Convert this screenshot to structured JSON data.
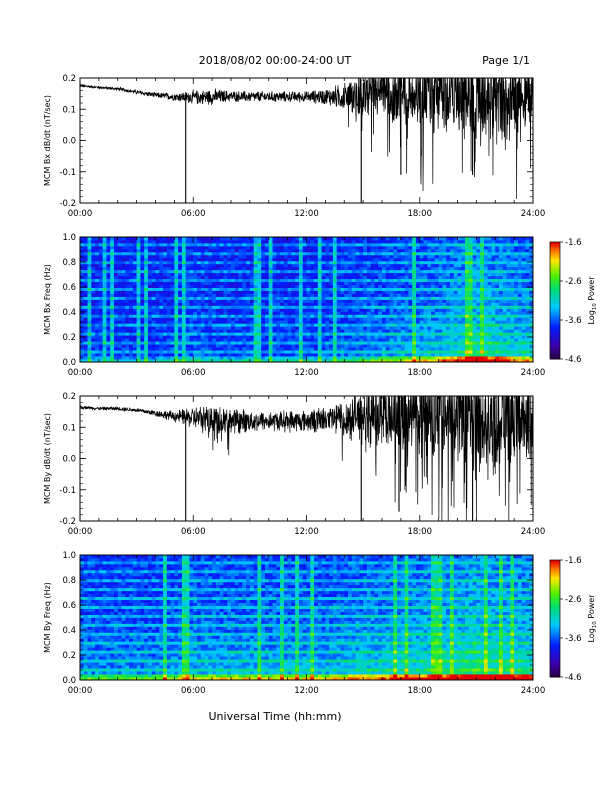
{
  "header": {
    "title": "2018/08/02  00:00-24:00 UT",
    "page": "Page 1/1"
  },
  "footer": {
    "xlabel": "Universal Time (hh:mm)"
  },
  "chart_data": [
    {
      "type": "line",
      "ylabel": "MCM Bx dB/dt (nT/sec)",
      "xlim": [
        0,
        24
      ],
      "ylim": [
        -0.2,
        0.2
      ],
      "x_ticks": [
        "00:00",
        "06:00",
        "12:00",
        "18:00",
        "24:00"
      ],
      "y_ticks": [
        "-0.2",
        "-0.1",
        "0.0",
        "0.1",
        "0.2"
      ],
      "series": [
        {
          "x": [
            0,
            1,
            2,
            3,
            4,
            5,
            6,
            7,
            8,
            9,
            10,
            11,
            12,
            13,
            14,
            15,
            16,
            17,
            18,
            19,
            20,
            21,
            22,
            23,
            24
          ],
          "baseline": [
            0.175,
            0.17,
            0.165,
            0.155,
            0.145,
            0.14,
            0.138,
            0.14,
            0.142,
            0.14,
            0.14,
            0.14,
            0.14,
            0.14,
            0.14,
            0.15,
            0.15,
            0.15,
            0.15,
            0.15,
            0.15,
            0.15,
            0.15,
            0.15,
            0.15
          ],
          "amplitude": [
            0.005,
            0.005,
            0.006,
            0.008,
            0.01,
            0.015,
            0.025,
            0.03,
            0.02,
            0.02,
            0.02,
            0.02,
            0.02,
            0.03,
            0.05,
            0.09,
            0.1,
            0.12,
            0.13,
            0.14,
            0.15,
            0.18,
            0.15,
            0.14,
            0.13
          ]
        }
      ],
      "spikes": [
        {
          "x": 5.6,
          "y": -0.2
        },
        {
          "x": 14.9,
          "y": -0.2
        },
        {
          "x": 17.0,
          "y": -0.11
        },
        {
          "x": 20.8,
          "y": -0.11
        }
      ]
    },
    {
      "type": "heatmap",
      "ylabel": "MCM Bx Freq (Hz)",
      "xlim": [
        0,
        24
      ],
      "ylim": [
        0,
        1.0
      ],
      "x_ticks": [
        "00:00",
        "06:00",
        "12:00",
        "18:00",
        "24:00"
      ],
      "y_ticks": [
        "0.0",
        "0.2",
        "0.4",
        "0.6",
        "0.8",
        "1.0"
      ],
      "colorbar": {
        "label": "Log",
        "label_sub": "10",
        "label_tail": " Power",
        "ticks": [
          "-1.6",
          "-2.6",
          "-3.6",
          "-4.6"
        ],
        "range": [
          -4.6,
          -1.6
        ]
      },
      "activity": [
        0.15,
        0.15,
        0.15,
        0.15,
        0.15,
        0.2,
        0.25,
        0.2,
        0.2,
        0.2,
        0.2,
        0.2,
        0.2,
        0.2,
        0.25,
        0.3,
        0.35,
        0.4,
        0.45,
        0.5,
        0.6,
        0.7,
        0.65,
        0.55,
        0.5
      ]
    },
    {
      "type": "line",
      "ylabel": "MCM By dB/dt (nT/sec)",
      "xlim": [
        0,
        24
      ],
      "ylim": [
        -0.2,
        0.2
      ],
      "x_ticks": [
        "00:00",
        "06:00",
        "12:00",
        "18:00",
        "24:00"
      ],
      "y_ticks": [
        "-0.2",
        "-0.1",
        "0.0",
        "0.1",
        "0.2"
      ],
      "series": [
        {
          "x": [
            0,
            1,
            2,
            3,
            4,
            5,
            6,
            7,
            8,
            9,
            10,
            11,
            12,
            13,
            14,
            15,
            16,
            17,
            18,
            19,
            20,
            21,
            22,
            23,
            24
          ],
          "baseline": [
            0.165,
            0.16,
            0.16,
            0.155,
            0.145,
            0.135,
            0.13,
            0.125,
            0.12,
            0.12,
            0.12,
            0.12,
            0.12,
            0.125,
            0.13,
            0.14,
            0.14,
            0.14,
            0.14,
            0.14,
            0.14,
            0.14,
            0.14,
            0.14,
            0.14
          ],
          "amplitude": [
            0.006,
            0.006,
            0.007,
            0.008,
            0.012,
            0.02,
            0.04,
            0.06,
            0.05,
            0.04,
            0.035,
            0.04,
            0.04,
            0.05,
            0.07,
            0.1,
            0.12,
            0.14,
            0.15,
            0.16,
            0.17,
            0.2,
            0.18,
            0.16,
            0.15
          ]
        }
      ],
      "spikes": [
        {
          "x": 5.6,
          "y": -0.2
        },
        {
          "x": 14.9,
          "y": -0.2
        },
        {
          "x": 16.9,
          "y": -0.17
        },
        {
          "x": 20.8,
          "y": -0.2
        }
      ]
    },
    {
      "type": "heatmap",
      "ylabel": "MCM By Freq (Hz)",
      "xlim": [
        0,
        24
      ],
      "ylim": [
        0,
        1.0
      ],
      "x_ticks": [
        "00:00",
        "06:00",
        "12:00",
        "18:00",
        "24:00"
      ],
      "y_ticks": [
        "0.0",
        "0.2",
        "0.4",
        "0.6",
        "0.8",
        "1.0"
      ],
      "colorbar": {
        "label": "Log",
        "label_sub": "10",
        "label_tail": " Power",
        "ticks": [
          "-1.6",
          "-2.6",
          "-3.6",
          "-4.6"
        ],
        "range": [
          -4.6,
          -1.6
        ]
      },
      "activity": [
        0.35,
        0.35,
        0.35,
        0.35,
        0.35,
        0.4,
        0.45,
        0.45,
        0.45,
        0.45,
        0.45,
        0.45,
        0.45,
        0.45,
        0.5,
        0.55,
        0.55,
        0.6,
        0.6,
        0.65,
        0.7,
        0.8,
        0.75,
        0.7,
        0.65
      ]
    }
  ]
}
